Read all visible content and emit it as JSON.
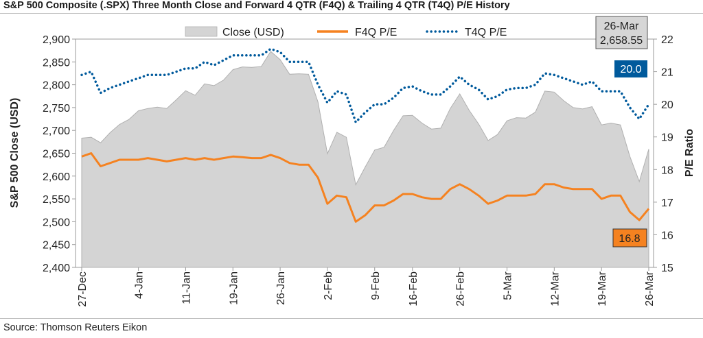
{
  "title": "S&P 500 Composite (.SPX) Three Month Close and Forward 4 QTR (F4Q) & Trailing 4 QTR (T4Q) P/E History",
  "source": "Source: Thomson Reuters Eikon",
  "colors": {
    "close_fill": "#d4d4d4",
    "close_edge": "#b0b0b0",
    "f4q": "#f58220",
    "t4q": "#005a9c"
  },
  "chart_data": {
    "type": "area",
    "title": "S&P 500 Composite (.SPX) Three Month Close and Forward 4 QTR (F4Q) & Trailing 4 QTR (T4Q) P/E History",
    "ylabel": "S&P 500 Close (USD)",
    "y2label": "P/E Ratio",
    "ylim": [
      2400,
      2900
    ],
    "yticks": [
      2400,
      2450,
      2500,
      2550,
      2600,
      2650,
      2700,
      2750,
      2800,
      2850,
      2900
    ],
    "ytick_labels": [
      "2,400",
      "2,450",
      "2,500",
      "2,550",
      "2,600",
      "2,650",
      "2,700",
      "2,750",
      "2,800",
      "2,850",
      "2,900"
    ],
    "y2lim": [
      15,
      22
    ],
    "y2ticks": [
      "15",
      "16",
      "17",
      "18",
      "19",
      "20",
      "21",
      "22"
    ],
    "xticks": [
      {
        "label": "27-Dec",
        "index": 0
      },
      {
        "label": "4-Jan",
        "index": 6
      },
      {
        "label": "11-Jan",
        "index": 11
      },
      {
        "label": "19-Jan",
        "index": 16
      },
      {
        "label": "26-Jan",
        "index": 21
      },
      {
        "label": "2-Feb",
        "index": 26
      },
      {
        "label": "9-Feb",
        "index": 31
      },
      {
        "label": "16-Feb",
        "index": 35
      },
      {
        "label": "26-Feb",
        "index": 40
      },
      {
        "label": "5-Mar",
        "index": 45
      },
      {
        "label": "12-Mar",
        "index": 50
      },
      {
        "label": "19-Mar",
        "index": 55
      },
      {
        "label": "26-Mar",
        "index": 60
      }
    ],
    "legend_position": "top",
    "series": [
      {
        "name": "Close (USD)",
        "type": "area",
        "axis": "left",
        "values": [
          2683,
          2685,
          2673,
          2695,
          2713,
          2724,
          2743,
          2748,
          2751,
          2748,
          2767,
          2787,
          2777,
          2802,
          2798,
          2810,
          2833,
          2839,
          2838,
          2840,
          2873,
          2855,
          2823,
          2824,
          2823,
          2762,
          2649,
          2696,
          2685,
          2581,
          2620,
          2657,
          2663,
          2700,
          2732,
          2733,
          2716,
          2703,
          2705,
          2748,
          2780,
          2744,
          2714,
          2678,
          2691,
          2721,
          2728,
          2727,
          2740,
          2786,
          2784,
          2765,
          2750,
          2747,
          2752,
          2712,
          2716,
          2712,
          2643,
          2588,
          2659
        ]
      },
      {
        "name": "F4Q P/E",
        "type": "line",
        "axis": "right",
        "values": [
          18.4,
          18.5,
          18.1,
          18.2,
          18.3,
          18.3,
          18.3,
          18.35,
          18.3,
          18.25,
          18.3,
          18.35,
          18.3,
          18.35,
          18.3,
          18.35,
          18.4,
          18.38,
          18.35,
          18.35,
          18.45,
          18.35,
          18.2,
          18.15,
          18.15,
          17.75,
          16.95,
          17.2,
          17.15,
          16.4,
          16.6,
          16.9,
          16.9,
          17.05,
          17.25,
          17.25,
          17.15,
          17.1,
          17.1,
          17.4,
          17.55,
          17.4,
          17.2,
          16.95,
          17.05,
          17.2,
          17.2,
          17.2,
          17.25,
          17.55,
          17.55,
          17.45,
          17.4,
          17.4,
          17.4,
          17.1,
          17.2,
          17.2,
          16.7,
          16.45,
          16.8
        ]
      },
      {
        "name": "T4Q P/E",
        "type": "line",
        "axis": "right",
        "values": [
          20.9,
          21.0,
          20.35,
          20.5,
          20.6,
          20.7,
          20.8,
          20.9,
          20.9,
          20.9,
          21.0,
          21.1,
          21.1,
          21.3,
          21.2,
          21.35,
          21.5,
          21.5,
          21.5,
          21.5,
          21.7,
          21.6,
          21.3,
          21.3,
          21.3,
          20.6,
          20.05,
          20.4,
          20.3,
          19.45,
          19.75,
          20.0,
          20.0,
          20.2,
          20.5,
          20.55,
          20.4,
          20.3,
          20.3,
          20.55,
          20.85,
          20.6,
          20.45,
          20.15,
          20.25,
          20.45,
          20.5,
          20.5,
          20.6,
          20.95,
          20.9,
          20.8,
          20.7,
          20.6,
          20.7,
          20.4,
          20.4,
          20.4,
          19.9,
          19.55,
          20.0
        ]
      }
    ],
    "callouts": {
      "date_box": [
        "26-Mar",
        "2,658.55"
      ],
      "t4q_value": "20.0",
      "f4q_value": "16.8"
    }
  }
}
